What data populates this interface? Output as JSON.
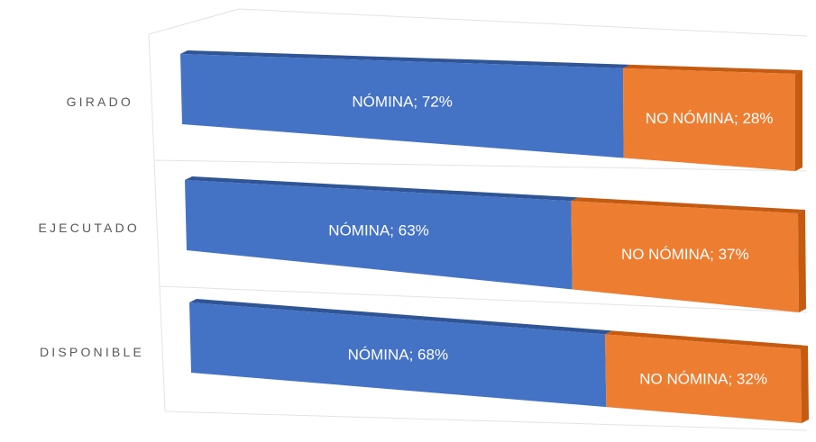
{
  "chart_data": {
    "type": "bar",
    "orientation": "horizontal",
    "stacking": "percent",
    "style": "3d",
    "categories": [
      "GIRADO",
      "EJECUTADO",
      "DISPONIBLE"
    ],
    "series": [
      {
        "name": "NÓMINA",
        "color": "#4472C4",
        "top_color": "#2F5597",
        "values": [
          72,
          63,
          68
        ],
        "labels": [
          "NÓMINA; 72%",
          "NÓMINA; 63%",
          "NÓMINA; 68%"
        ]
      },
      {
        "name": "NO NÓMINA",
        "color": "#ED7D31",
        "top_color": "#C55A11",
        "values": [
          28,
          37,
          32
        ],
        "labels": [
          "NO NÓMINA; 28%",
          "NO NÓMINA; 37%",
          "NO NÓMINA; 32%"
        ]
      }
    ],
    "xlim": [
      0,
      100
    ],
    "grid": true,
    "legend": "none"
  }
}
